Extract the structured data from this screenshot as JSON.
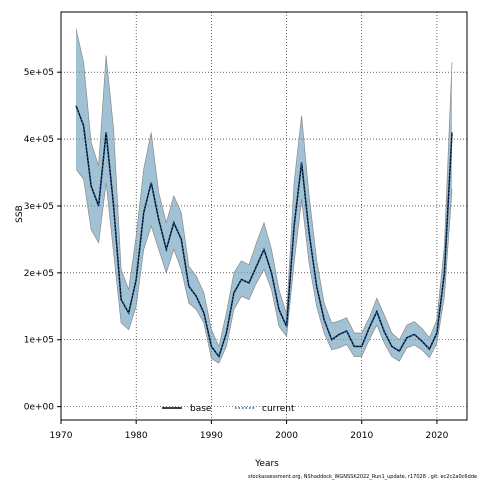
{
  "chart_data": {
    "type": "line",
    "title": "",
    "xlabel": "Years",
    "ylabel": "SSB",
    "xlim": [
      1970,
      2024
    ],
    "ylim": [
      -20000,
      590000
    ],
    "x_ticks": [
      1970,
      1980,
      1990,
      2000,
      2010,
      2020
    ],
    "x_tick_labels": [
      "1970",
      "1980",
      "1990",
      "2000",
      "2010",
      "2020"
    ],
    "y_ticks": [
      0,
      100000,
      200000,
      300000,
      400000,
      500000
    ],
    "y_tick_labels": [
      "0e+00",
      "1e+05",
      "2e+05",
      "3e+05",
      "4e+05",
      "5e+05"
    ],
    "grid": true,
    "legend_position": "bottom-center",
    "footnote": "stockassessment.org, NShaddock_WGNSSK2022_Run1_update, r17028 , git: ec2c2a0c6dde",
    "x": [
      1972,
      1973,
      1974,
      1975,
      1976,
      1977,
      1978,
      1979,
      1980,
      1981,
      1982,
      1983,
      1984,
      1985,
      1986,
      1987,
      1988,
      1989,
      1990,
      1991,
      1992,
      1993,
      1994,
      1995,
      1996,
      1997,
      1998,
      1999,
      2000,
      2001,
      2002,
      2003,
      2004,
      2005,
      2006,
      2007,
      2008,
      2009,
      2010,
      2011,
      2012,
      2013,
      2014,
      2015,
      2016,
      2017,
      2018,
      2019,
      2020,
      2021,
      2022
    ],
    "series": [
      {
        "name": "base",
        "color": "#000000",
        "style": "solid",
        "values": [
          450000,
          420000,
          330000,
          300000,
          410000,
          300000,
          160000,
          140000,
          190000,
          290000,
          335000,
          280000,
          235000,
          275000,
          250000,
          180000,
          165000,
          140000,
          90000,
          75000,
          110000,
          170000,
          190000,
          185000,
          210000,
          235000,
          200000,
          145000,
          120000,
          270000,
          365000,
          260000,
          180000,
          130000,
          100000,
          108000,
          113000,
          90000,
          90000,
          118000,
          142000,
          112000,
          90000,
          83000,
          103000,
          108000,
          98000,
          86000,
          110000,
          200000,
          410000
        ]
      },
      {
        "name": "current",
        "color": "#1f5fa8",
        "style": "dotted",
        "values": [
          450000,
          420000,
          330000,
          300000,
          410000,
          300000,
          160000,
          140000,
          190000,
          290000,
          335000,
          280000,
          235000,
          275000,
          250000,
          180000,
          165000,
          140000,
          90000,
          75000,
          110000,
          170000,
          190000,
          185000,
          210000,
          235000,
          200000,
          145000,
          120000,
          270000,
          365000,
          260000,
          180000,
          130000,
          100000,
          108000,
          113000,
          90000,
          90000,
          118000,
          142000,
          112000,
          90000,
          83000,
          103000,
          108000,
          98000,
          86000,
          110000,
          200000,
          410000
        ]
      }
    ],
    "ci_band": {
      "color": "#6e9fbd",
      "upper": [
        565000,
        515000,
        395000,
        360000,
        525000,
        415000,
        205000,
        175000,
        255000,
        355000,
        410000,
        320000,
        275000,
        315000,
        290000,
        210000,
        195000,
        170000,
        115000,
        90000,
        140000,
        200000,
        218000,
        212000,
        245000,
        275000,
        235000,
        175000,
        138000,
        335000,
        435000,
        315000,
        220000,
        155000,
        125000,
        128000,
        133000,
        110000,
        110000,
        133000,
        162000,
        137000,
        110000,
        100000,
        122000,
        127000,
        117000,
        103000,
        130000,
        240000,
        515000
      ],
      "lower": [
        355000,
        340000,
        265000,
        245000,
        335000,
        230000,
        125000,
        115000,
        150000,
        235000,
        270000,
        235000,
        200000,
        235000,
        205000,
        155000,
        145000,
        125000,
        72000,
        65000,
        90000,
        145000,
        165000,
        160000,
        185000,
        205000,
        175000,
        120000,
        105000,
        215000,
        310000,
        215000,
        150000,
        110000,
        85000,
        88000,
        93000,
        75000,
        75000,
        100000,
        122000,
        95000,
        75000,
        68000,
        88000,
        92000,
        85000,
        73000,
        95000,
        165000,
        325000
      ]
    }
  }
}
